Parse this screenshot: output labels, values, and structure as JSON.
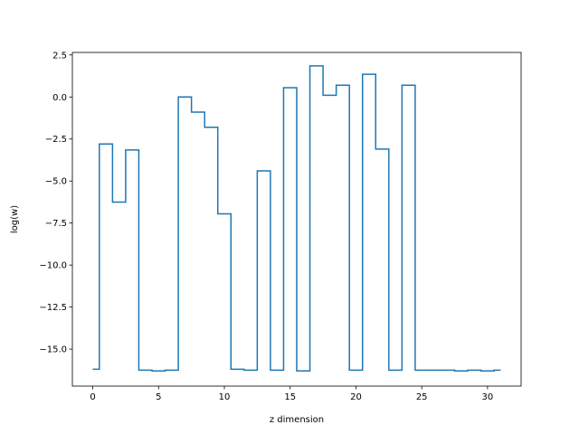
{
  "chart_data": {
    "type": "line",
    "drawstyle": "steps-mid",
    "title": "",
    "xlabel": "z dimension",
    "ylabel": "log(w)",
    "xlim": [
      -1.55,
      32.55
    ],
    "ylim": [
      -17.2,
      2.65
    ],
    "xticks": [
      0,
      5,
      10,
      15,
      20,
      25,
      30
    ],
    "xtick_labels": [
      "0",
      "5",
      "10",
      "15",
      "20",
      "25",
      "30"
    ],
    "yticks": [
      2.5,
      0.0,
      -2.5,
      -5.0,
      -7.5,
      -10.0,
      -12.5,
      -15.0
    ],
    "ytick_labels": [
      "2.5",
      "0.0",
      "−2.5",
      "−5.0",
      "−7.5",
      "−10.0",
      "−12.5",
      "−15.0"
    ],
    "grid": false,
    "series": [
      {
        "color": "#1f77b4",
        "x": [
          0,
          1,
          2,
          3,
          4,
          5,
          6,
          7,
          8,
          9,
          10,
          11,
          12,
          13,
          14,
          15,
          16,
          17,
          18,
          19,
          20,
          21,
          22,
          23,
          24,
          25,
          26,
          27,
          28,
          29,
          30,
          31
        ],
        "y": [
          -16.2,
          -2.8,
          -6.25,
          -3.15,
          -16.25,
          -16.3,
          -16.25,
          0.0,
          -0.9,
          -1.8,
          -6.95,
          -16.2,
          -16.25,
          -4.4,
          -16.25,
          0.55,
          -16.3,
          1.85,
          0.1,
          0.7,
          -16.25,
          1.35,
          -3.1,
          -16.25,
          0.7,
          -16.25,
          -16.25,
          -16.25,
          -16.3,
          -16.25,
          -16.3,
          -16.25
        ]
      }
    ]
  }
}
